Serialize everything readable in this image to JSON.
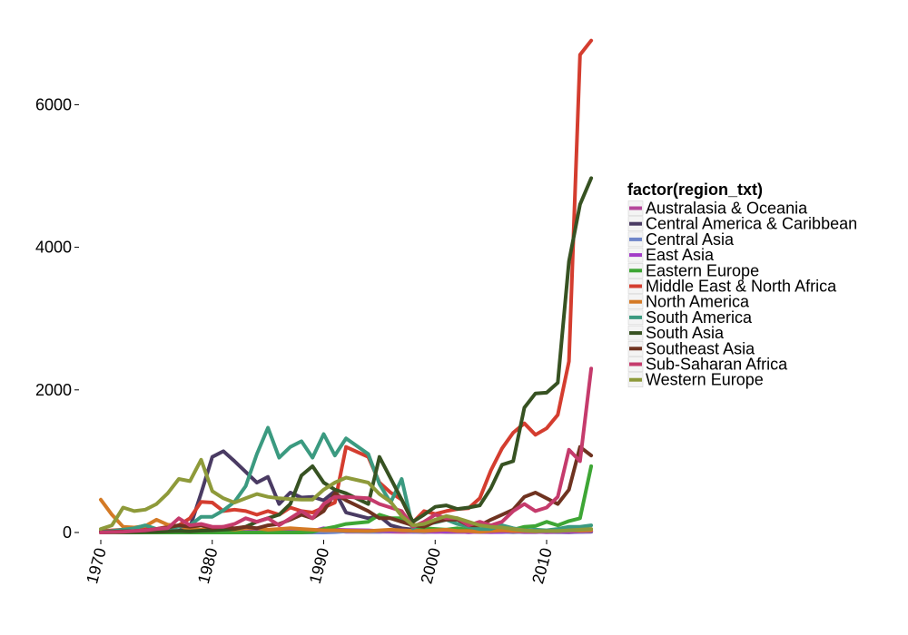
{
  "chart_data": {
    "type": "line",
    "xlabel": "",
    "ylabel": "",
    "xlim": [
      1970,
      2014
    ],
    "ylim": [
      0,
      7000
    ],
    "x_ticks": [
      1970,
      1980,
      1990,
      2000,
      2010
    ],
    "y_ticks": [
      0,
      2000,
      4000,
      6000
    ],
    "x_tick_labels": [
      "1970",
      "1980",
      "1990",
      "2000",
      "2010"
    ],
    "y_tick_labels": [
      "0",
      "2000",
      "4000",
      "6000"
    ],
    "grid": false,
    "legend": {
      "title": "factor(region_txt)",
      "position": "right"
    },
    "x": [
      1970,
      1971,
      1972,
      1973,
      1974,
      1975,
      1976,
      1977,
      1978,
      1979,
      1980,
      1981,
      1982,
      1983,
      1984,
      1985,
      1986,
      1987,
      1988,
      1989,
      1990,
      1991,
      1992,
      1994,
      1995,
      1996,
      1997,
      1998,
      1999,
      2000,
      2001,
      2002,
      2003,
      2004,
      2005,
      2006,
      2007,
      2008,
      2009,
      2010,
      2011,
      2012,
      2013,
      2014
    ],
    "series": [
      {
        "name": "Australasia & Oceania",
        "color": "#b5479b",
        "values": [
          0,
          2,
          2,
          5,
          3,
          8,
          10,
          5,
          10,
          8,
          5,
          5,
          10,
          8,
          5,
          15,
          10,
          10,
          5,
          15,
          20,
          25,
          10,
          10,
          10,
          10,
          8,
          10,
          5,
          10,
          8,
          10,
          5,
          10,
          8,
          10,
          8,
          5,
          5,
          10,
          10,
          10,
          10,
          12
        ]
      },
      {
        "name": "Central America & Caribbean",
        "color": "#4a3b63",
        "values": [
          7,
          5,
          10,
          8,
          10,
          15,
          20,
          25,
          70,
          550,
          1060,
          1140,
          1000,
          850,
          700,
          780,
          400,
          560,
          490,
          500,
          450,
          580,
          280,
          200,
          230,
          100,
          60,
          40,
          20,
          15,
          10,
          10,
          5,
          8,
          10,
          10,
          5,
          10,
          8,
          5,
          5,
          3,
          10,
          12
        ]
      },
      {
        "name": "Central Asia",
        "color": "#6f86c9",
        "values": [
          0,
          0,
          0,
          0,
          0,
          0,
          0,
          0,
          0,
          0,
          0,
          0,
          0,
          0,
          0,
          0,
          0,
          0,
          0,
          0,
          0,
          5,
          15,
          10,
          10,
          20,
          30,
          10,
          10,
          10,
          15,
          10,
          8,
          5,
          5,
          5,
          10,
          5,
          5,
          10,
          5,
          10,
          10,
          15
        ]
      },
      {
        "name": "East Asia",
        "color": "#a33cc7",
        "values": [
          5,
          5,
          5,
          10,
          15,
          10,
          10,
          15,
          10,
          15,
          10,
          20,
          15,
          10,
          20,
          15,
          10,
          20,
          30,
          20,
          60,
          40,
          35,
          30,
          20,
          25,
          30,
          20,
          20,
          10,
          15,
          10,
          5,
          10,
          5,
          10,
          15,
          8,
          10,
          5,
          10,
          10,
          15,
          20
        ]
      },
      {
        "name": "Eastern Europe",
        "color": "#3ea635",
        "values": [
          0,
          0,
          0,
          0,
          0,
          0,
          0,
          0,
          0,
          0,
          0,
          0,
          0,
          0,
          0,
          0,
          0,
          0,
          0,
          10,
          50,
          80,
          120,
          150,
          250,
          200,
          200,
          80,
          60,
          50,
          40,
          60,
          40,
          30,
          40,
          50,
          40,
          80,
          90,
          150,
          100,
          160,
          200,
          930
        ]
      },
      {
        "name": "Middle East & North Africa",
        "color": "#d43d2f",
        "values": [
          20,
          30,
          40,
          30,
          50,
          50,
          80,
          100,
          200,
          430,
          420,
          300,
          320,
          300,
          250,
          300,
          250,
          350,
          300,
          280,
          350,
          420,
          1200,
          1060,
          700,
          560,
          460,
          140,
          300,
          260,
          300,
          330,
          340,
          480,
          870,
          1180,
          1400,
          1530,
          1370,
          1460,
          1650,
          2400,
          6700,
          6900
        ]
      },
      {
        "name": "North America",
        "color": "#d47a25",
        "values": [
          460,
          250,
          80,
          70,
          90,
          180,
          110,
          90,
          50,
          40,
          60,
          50,
          40,
          60,
          60,
          40,
          50,
          60,
          50,
          40,
          30,
          30,
          25,
          20,
          30,
          40,
          30,
          25,
          20,
          30,
          40,
          20,
          20,
          10,
          20,
          30,
          20,
          20,
          15,
          20,
          20,
          30,
          25,
          30
        ]
      },
      {
        "name": "South America",
        "color": "#3b9a80",
        "values": [
          10,
          20,
          40,
          60,
          100,
          50,
          60,
          80,
          100,
          220,
          220,
          310,
          430,
          650,
          1100,
          1470,
          1050,
          1200,
          1280,
          1050,
          1380,
          1080,
          1320,
          1100,
          680,
          420,
          750,
          60,
          120,
          140,
          180,
          120,
          80,
          50,
          50,
          100,
          60,
          30,
          40,
          30,
          50,
          80,
          80,
          100
        ]
      },
      {
        "name": "South Asia",
        "color": "#375222",
        "values": [
          2,
          5,
          3,
          5,
          8,
          10,
          15,
          20,
          15,
          25,
          30,
          40,
          50,
          80,
          150,
          200,
          250,
          400,
          800,
          930,
          700,
          600,
          550,
          400,
          1060,
          760,
          460,
          150,
          250,
          360,
          380,
          330,
          350,
          380,
          620,
          950,
          1000,
          1750,
          1950,
          1960,
          2100,
          3800,
          4600,
          4970
        ]
      },
      {
        "name": "Southeast Asia",
        "color": "#6f3320",
        "values": [
          5,
          10,
          15,
          20,
          30,
          50,
          70,
          100,
          80,
          100,
          60,
          80,
          60,
          80,
          60,
          100,
          120,
          180,
          250,
          200,
          300,
          550,
          450,
          300,
          200,
          200,
          150,
          100,
          80,
          150,
          180,
          180,
          100,
          100,
          180,
          250,
          320,
          500,
          560,
          480,
          400,
          600,
          1200,
          1080
        ]
      },
      {
        "name": "Sub-Saharan Africa",
        "color": "#c53b6c",
        "values": [
          0,
          5,
          10,
          20,
          30,
          50,
          60,
          200,
          100,
          120,
          80,
          80,
          120,
          200,
          150,
          200,
          100,
          200,
          300,
          200,
          400,
          500,
          500,
          480,
          400,
          350,
          300,
          80,
          150,
          250,
          200,
          200,
          100,
          150,
          100,
          150,
          300,
          400,
          300,
          350,
          500,
          1160,
          1000,
          2300
        ]
      },
      {
        "name": "Western Europe",
        "color": "#8e9a3a",
        "values": [
          50,
          100,
          350,
          300,
          320,
          400,
          550,
          750,
          720,
          1020,
          580,
          480,
          420,
          480,
          540,
          500,
          480,
          470,
          460,
          460,
          600,
          700,
          770,
          700,
          540,
          430,
          230,
          100,
          120,
          180,
          230,
          200,
          150,
          100,
          80,
          70,
          50,
          30,
          20,
          20,
          20,
          30,
          40,
          50
        ]
      }
    ]
  }
}
